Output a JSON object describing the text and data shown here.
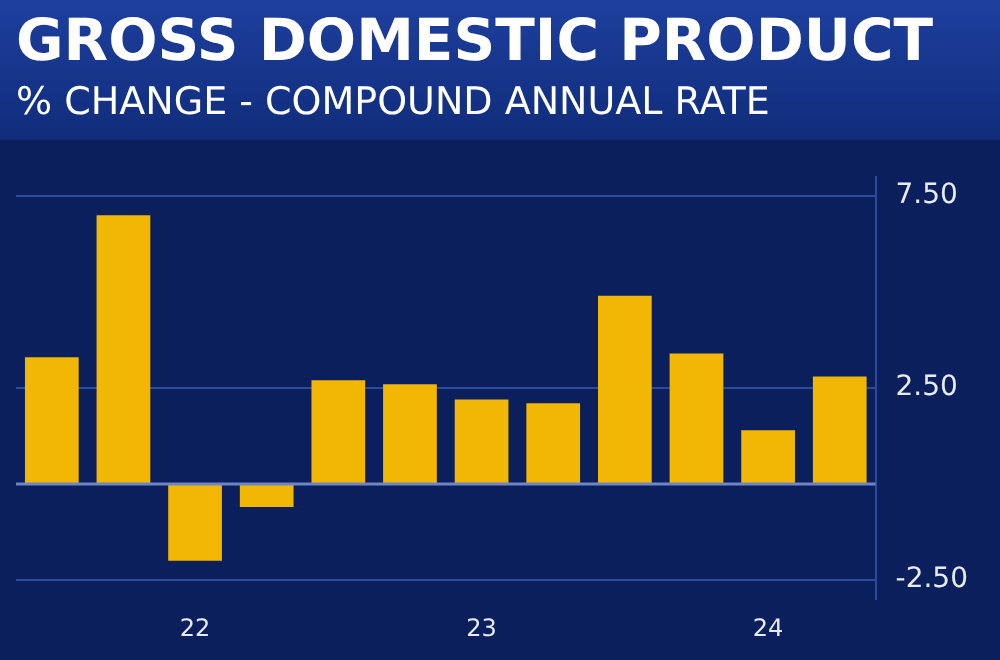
{
  "chart_data": {
    "type": "bar",
    "title": "GROSS DOMESTIC PRODUCT",
    "subtitle": "% CHANGE - COMPOUND ANNUAL RATE",
    "categories": [
      null,
      null,
      "22",
      null,
      null,
      null,
      "23",
      null,
      null,
      null,
      "24",
      null
    ],
    "values": [
      3.3,
      7.0,
      -2.0,
      -0.6,
      2.7,
      2.6,
      2.2,
      2.1,
      4.9,
      3.4,
      1.4,
      2.8
    ],
    "color": "#f2b705",
    "ylim": [
      -3,
      8
    ],
    "yticks": [
      {
        "value": 7.5,
        "label": "7.50"
      },
      {
        "value": 2.5,
        "label": "2.50"
      },
      {
        "value": -2.5,
        "label": "-2.50"
      }
    ],
    "ref_lines": [
      {
        "axis": "y",
        "value": 0,
        "color": "#6f86c4"
      }
    ],
    "grid": "y"
  }
}
